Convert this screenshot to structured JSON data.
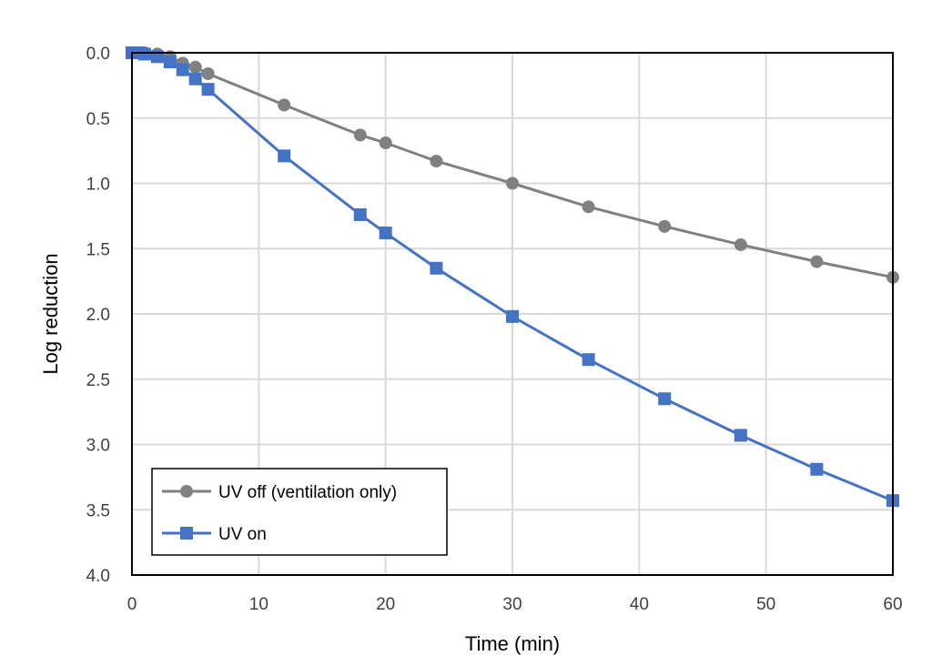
{
  "chart_data": {
    "type": "line",
    "title": "",
    "xlabel": "Time (min)",
    "ylabel": "Log reduction",
    "xlim": [
      0,
      60
    ],
    "ylim": [
      0,
      4
    ],
    "y_inverted": true,
    "grid": true,
    "legend_position": "bottom-left",
    "x_ticks": [
      "0",
      "10",
      "20",
      "30",
      "40",
      "50",
      "60"
    ],
    "y_ticks": [
      "0.0",
      "0.5",
      "1.0",
      "1.5",
      "2.0",
      "2.5",
      "3.0",
      "3.5",
      "4.0"
    ],
    "series": [
      {
        "name": "UV off (ventilation only)",
        "color": "#808080",
        "marker": "circle",
        "x": [
          0,
          0.5,
          1,
          2,
          3,
          4,
          5,
          6,
          12,
          18,
          20,
          24,
          30,
          36,
          42,
          48,
          54,
          60
        ],
        "y": [
          0,
          0,
          0,
          0.01,
          0.03,
          0.08,
          0.11,
          0.16,
          0.4,
          0.63,
          0.69,
          0.83,
          1.0,
          1.18,
          1.33,
          1.47,
          1.6,
          1.72
        ]
      },
      {
        "name": "UV on",
        "color": "#4472C4",
        "marker": "square",
        "x": [
          0,
          0.5,
          1,
          2,
          3,
          4,
          5,
          6,
          12,
          18,
          20,
          24,
          30,
          36,
          42,
          48,
          54,
          60
        ],
        "y": [
          0,
          0,
          0.01,
          0.03,
          0.07,
          0.13,
          0.2,
          0.28,
          0.79,
          1.24,
          1.38,
          1.65,
          2.02,
          2.35,
          2.65,
          2.93,
          3.19,
          3.43
        ]
      }
    ]
  }
}
